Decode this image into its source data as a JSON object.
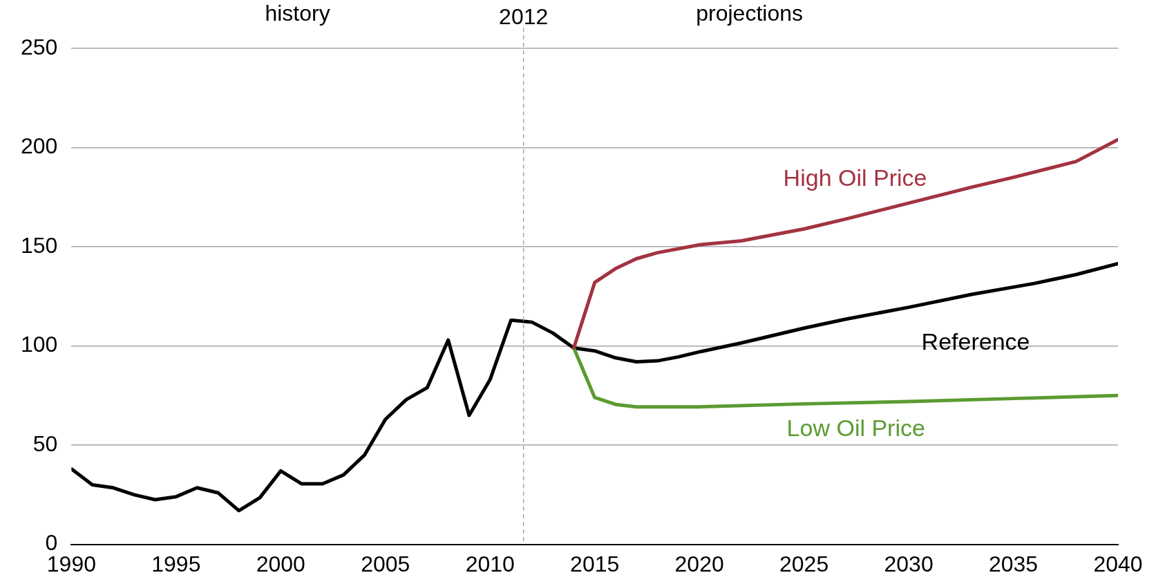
{
  "chart_data": {
    "type": "line",
    "xlim": [
      1990,
      2040
    ],
    "xticks": [
      1990,
      1995,
      2000,
      2005,
      2010,
      2015,
      2020,
      2025,
      2030,
      2035,
      2040
    ],
    "ylim": [
      0,
      250
    ],
    "yticks": [
      0,
      50,
      100,
      150,
      200,
      250
    ],
    "grid": "y",
    "legend": false,
    "marker": "none",
    "line_style": "solid",
    "annotations": [
      "history",
      "projections"
    ],
    "ref_lines": [
      {
        "axis": "x",
        "value": 2011.6,
        "label": "2012",
        "color": "#a6a6a6",
        "line_style": "dashed"
      }
    ],
    "series": [
      {
        "name": "High Oil Price",
        "color": "#a33341",
        "x": [
          2014,
          2015,
          2016,
          2017,
          2018,
          2020,
          2022,
          2025,
          2027,
          2030,
          2033,
          2035,
          2038,
          2040
        ],
        "values": [
          99,
          132,
          139,
          144,
          147,
          151,
          153,
          159,
          164,
          172,
          180,
          185,
          193,
          204
        ]
      },
      {
        "name": "Low Oil Price",
        "color": "#5b9b32",
        "x": [
          2014,
          2015,
          2016,
          2017,
          2020,
          2025,
          2030,
          2035,
          2040
        ],
        "values": [
          99,
          74,
          70.5,
          69.3,
          69.3,
          70.8,
          72,
          73.5,
          75
        ]
      },
      {
        "name": "Reference",
        "color": "#000000",
        "x": [
          1990,
          1991,
          1992,
          1993,
          1994,
          1995,
          1996,
          1997,
          1998,
          1999,
          2000,
          2001,
          2002,
          2003,
          2004,
          2005,
          2006,
          2007,
          2008,
          2009,
          2010,
          2011,
          2012,
          2013,
          2014,
          2015,
          2016,
          2017,
          2018,
          2019,
          2020,
          2022,
          2025,
          2027,
          2030,
          2033,
          2036,
          2038,
          2040
        ],
        "values": [
          38,
          30,
          28.5,
          25,
          22.5,
          24,
          28.5,
          26,
          17,
          23.5,
          37,
          30.5,
          30.5,
          35,
          45,
          63,
          73,
          79,
          103,
          65,
          83,
          113,
          112,
          106.5,
          99,
          97.5,
          94,
          92,
          92.5,
          94.5,
          97,
          101.5,
          109,
          113.5,
          119.5,
          126,
          131.5,
          136,
          141.5
        ]
      }
    ]
  }
}
